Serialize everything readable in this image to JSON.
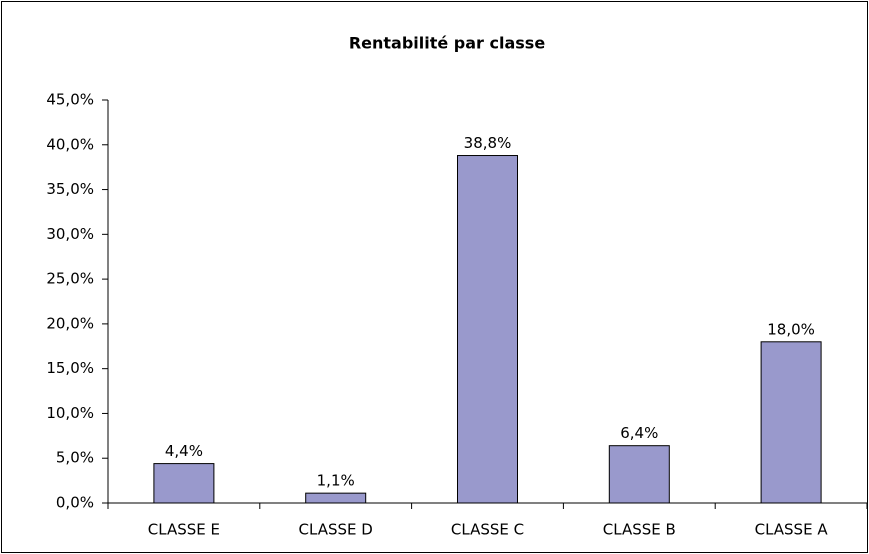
{
  "chart_data": {
    "type": "bar",
    "title": "Rentabilité par classe",
    "categories": [
      "CLASSE E",
      "CLASSE D",
      "CLASSE C",
      "CLASSE B",
      "CLASSE A"
    ],
    "values": [
      4.4,
      1.1,
      38.8,
      6.4,
      18.0
    ],
    "value_labels": [
      "4,4%",
      "1,1%",
      "38,8%",
      "6,4%",
      "18,0%"
    ],
    "color": "#9999cc",
    "ylim": [
      0,
      45
    ],
    "yticks": [
      {
        "value": 0,
        "label": "0,0%"
      },
      {
        "value": 5,
        "label": "5,0%"
      },
      {
        "value": 10,
        "label": "10,0%"
      },
      {
        "value": 15,
        "label": "15,0%"
      },
      {
        "value": 20,
        "label": "20,0%"
      },
      {
        "value": 25,
        "label": "25,0%"
      },
      {
        "value": 30,
        "label": "30,0%"
      },
      {
        "value": 35,
        "label": "35,0%"
      },
      {
        "value": 40,
        "label": "40,0%"
      },
      {
        "value": 45,
        "label": "45,0%"
      }
    ],
    "grid": false
  }
}
